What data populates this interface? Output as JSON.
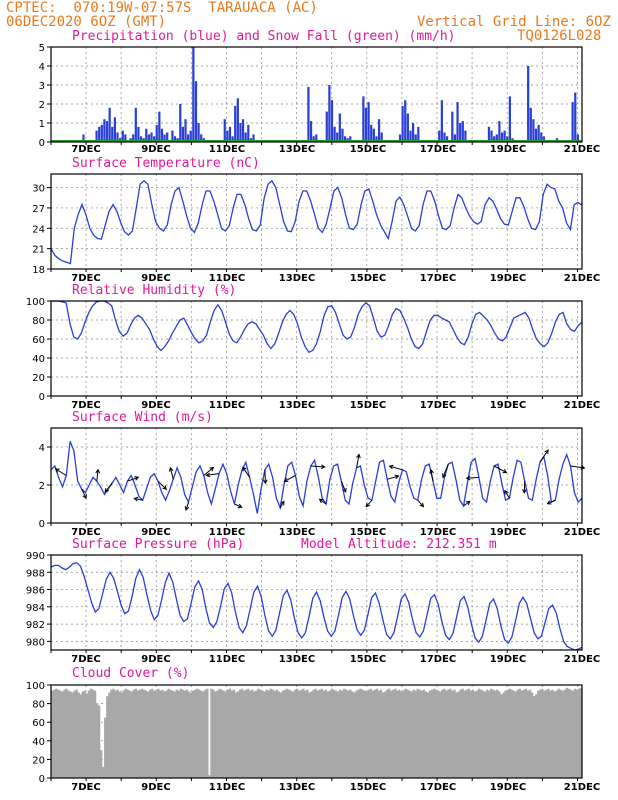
{
  "header": {
    "line1": "CPTEC:  070:19W-07:57S  TARAUACA (AC)",
    "line2": "06DEC2020 6OZ (GMT)",
    "grid_note": "Vertical Grid Line: 6OZ",
    "code": "TQ0126L028"
  },
  "colors": {
    "header": "#e8791e",
    "title": "#e0189a",
    "line": "#2a3fd6",
    "snow": "#1f9a1f",
    "grid": "#888888",
    "cloud": "#a8a8a8"
  },
  "date_labels": [
    "7DEC",
    "9DEC",
    "11DEC",
    "13DEC",
    "15DEC",
    "17DEC",
    "19DEC",
    "21DEC"
  ],
  "chart_data": [
    {
      "type": "bar",
      "title": "Precipitation (blue) and Snow Fall (green) (mm/h)",
      "ylim": [
        0,
        5
      ],
      "yticks": [
        "0",
        "1",
        "2",
        "3",
        "4",
        "5"
      ],
      "series": [
        {
          "name": "Precipitation",
          "values": [
            0,
            0,
            0,
            0,
            0,
            0,
            0,
            0,
            0,
            0,
            0,
            0,
            0.4,
            0,
            0,
            0,
            0,
            0.6,
            0.8,
            0.9,
            1.2,
            1.1,
            1.8,
            0.8,
            1.3,
            0.5,
            0.2,
            0.6,
            0.4,
            0,
            0.2,
            0.4,
            1.8,
            0.8,
            0.3,
            0.2,
            0.7,
            0.4,
            0.5,
            0.3,
            0.9,
            1.6,
            0.7,
            0.4,
            0.5,
            0,
            0.6,
            0.3,
            0.2,
            2.0,
            0.8,
            1.2,
            0.4,
            0.6,
            5.0,
            3.2,
            1.0,
            0.4,
            0.2,
            0,
            0,
            0,
            0,
            0,
            0,
            0,
            1.2,
            0.6,
            0.8,
            0.3,
            1.9,
            2.3,
            1.0,
            1.2,
            0.5,
            0.9,
            0.2,
            0.4,
            0,
            0,
            0,
            0,
            0,
            0,
            0,
            0,
            0,
            0,
            0,
            0,
            0,
            0,
            0,
            0,
            0,
            0,
            0,
            0,
            2.9,
            1.1,
            0.3,
            0.4,
            0,
            0,
            0,
            1.6,
            3.0,
            2.2,
            0.8,
            0.5,
            1.5,
            0.7,
            0.3,
            0.2,
            0.3,
            0,
            0,
            0,
            0,
            2.4,
            1.8,
            2.1,
            0.9,
            0.7,
            0.3,
            1.2,
            0.5,
            0,
            0,
            0,
            0,
            0,
            0,
            0.4,
            1.9,
            2.2,
            1.5,
            0.6,
            1.0,
            0.4,
            0.8,
            0,
            0,
            0,
            0,
            0,
            0,
            0,
            0.6,
            2.2,
            0.5,
            0.3,
            0.1,
            1.6,
            0.4,
            2.1,
            1.0,
            1.1,
            0.6,
            0,
            0,
            0,
            0,
            0,
            0,
            0,
            0,
            0.8,
            0.6,
            0.3,
            0.4,
            1.1,
            0.5,
            0.6,
            0.3,
            2.4,
            0.2,
            0,
            0,
            0,
            0,
            0,
            4.0,
            1.8,
            1.2,
            0.7,
            0.9,
            0.5,
            0.3,
            0,
            0,
            0,
            0,
            0.2,
            0.1,
            0,
            0,
            0,
            0,
            2.1,
            2.6,
            0.4,
            0
          ]
        },
        {
          "name": "Snow Fall",
          "values": [
            0
          ]
        }
      ]
    },
    {
      "type": "line",
      "title": "Surface Temperature (nC)",
      "ylim": [
        18,
        32
      ],
      "yticks": [
        "18",
        "21",
        "24",
        "27",
        "30"
      ],
      "series": [
        {
          "name": "Temperature",
          "values": [
            21,
            20,
            19.5,
            19.2,
            19,
            18.8,
            24,
            26,
            27.5,
            26,
            24,
            23,
            22.5,
            22.4,
            24.5,
            26.5,
            27.5,
            26.5,
            24.8,
            23.5,
            23,
            23.6,
            27,
            30.5,
            31,
            30.5,
            27.5,
            25,
            24,
            23.6,
            24.5,
            27.5,
            29.5,
            30,
            28,
            25.8,
            24,
            23.4,
            24.8,
            27.5,
            29.5,
            29.5,
            28,
            26,
            24,
            23.6,
            24.4,
            27,
            29,
            29,
            27.5,
            25.4,
            23.8,
            23.6,
            24.5,
            28.5,
            30.5,
            31,
            30,
            27.5,
            25,
            23.6,
            23.5,
            25,
            28,
            29.5,
            29.5,
            28,
            26,
            24,
            23.4,
            24.6,
            27,
            29.5,
            30,
            28.5,
            26,
            24,
            23.8,
            24.6,
            27.5,
            29.5,
            29.8,
            28,
            26,
            24.5,
            23.5,
            22.5,
            25,
            28,
            28.6,
            27.5,
            25.8,
            24,
            23.6,
            24.4,
            27.5,
            29.5,
            29.5,
            28,
            25.8,
            24,
            23.8,
            24.4,
            27,
            29,
            28.5,
            27,
            25.8,
            25,
            24.6,
            25,
            27.5,
            28.5,
            28,
            26.8,
            25.4,
            24.6,
            24.5,
            26.5,
            28.5,
            28.5,
            27.2,
            25.4,
            24,
            23.8,
            25,
            29,
            30.5,
            30,
            29.8,
            28,
            27,
            24.8,
            23.8,
            27.5,
            27.8,
            27.4
          ]
        }
      ]
    },
    {
      "type": "line",
      "title": "Relative Humidity (%)",
      "ylim": [
        0,
        100
      ],
      "yticks": [
        "0",
        "20",
        "40",
        "60",
        "80",
        "100"
      ],
      "series": [
        {
          "name": "Relative Humidity",
          "values": [
            100,
            100,
            100,
            99,
            98,
            76,
            62,
            60,
            66,
            78,
            88,
            95,
            99,
            100,
            100,
            98,
            95,
            80,
            68,
            63,
            66,
            75,
            82,
            85,
            82,
            76,
            70,
            60,
            52,
            48,
            52,
            58,
            66,
            73,
            80,
            82,
            75,
            67,
            60,
            56,
            58,
            64,
            78,
            90,
            96,
            90,
            78,
            65,
            58,
            56,
            62,
            70,
            76,
            78,
            76,
            70,
            64,
            55,
            50,
            55,
            66,
            78,
            86,
            90,
            86,
            76,
            62,
            52,
            46,
            48,
            55,
            68,
            85,
            94,
            95,
            88,
            76,
            64,
            60,
            62,
            72,
            86,
            94,
            98,
            95,
            82,
            68,
            62,
            64,
            74,
            86,
            92,
            90,
            82,
            72,
            60,
            52,
            50,
            55,
            68,
            80,
            85,
            85,
            82,
            80,
            78,
            70,
            62,
            56,
            54,
            62,
            76,
            86,
            88,
            84,
            80,
            74,
            66,
            60,
            58,
            62,
            72,
            82,
            84,
            86,
            88,
            82,
            70,
            60,
            55,
            52,
            56,
            66,
            78,
            86,
            88,
            76,
            70,
            68,
            74,
            78
          ]
        }
      ]
    },
    {
      "type": "line",
      "title": "Surface Wind (m/s)",
      "ylim": [
        0,
        5
      ],
      "yticks": [
        "0",
        "2",
        "4"
      ],
      "series": [
        {
          "name": "Wind Speed",
          "values": [
            2.8,
            3.0,
            2.4,
            1.9,
            2.5,
            4.3,
            3.8,
            2.2,
            1.8,
            1.6,
            2.0,
            2.4,
            2.2,
            1.9,
            1.5,
            1.8,
            2.1,
            2.4,
            2.0,
            1.6,
            2.2,
            2.5,
            2.0,
            1.4,
            1.2,
            1.8,
            2.4,
            2.6,
            2.2,
            1.6,
            1.2,
            1.7,
            2.3,
            2.9,
            2.4,
            1.5,
            1.1,
            1.9,
            2.7,
            3.0,
            2.5,
            1.6,
            1.0,
            1.8,
            2.6,
            3.1,
            2.6,
            1.7,
            1.0,
            2.0,
            2.8,
            3.2,
            2.4,
            1.5,
            0.5,
            1.8,
            2.8,
            3.1,
            2.4,
            1.3,
            0.8,
            2.0,
            3.0,
            3.2,
            2.5,
            1.4,
            0.9,
            2.2,
            3.0,
            3.3,
            2.4,
            1.3,
            1.0,
            2.3,
            3.0,
            3.1,
            2.2,
            1.2,
            1.0,
            2.1,
            2.9,
            3.0,
            2.0,
            1.3,
            1.2,
            2.2,
            3.2,
            3.3,
            2.3,
            1.4,
            1.1,
            2.1,
            2.8,
            2.7,
            1.9,
            1.3,
            1.2,
            2.3,
            3.0,
            3.1,
            2.2,
            1.3,
            1.3,
            2.4,
            3.1,
            3.2,
            2.3,
            1.2,
            0.9,
            2.1,
            3.2,
            3.4,
            2.4,
            1.3,
            1.1,
            2.2,
            3.0,
            3.1,
            2.1,
            1.2,
            1.3,
            2.4,
            3.3,
            3.2,
            2.2,
            1.3,
            1.2,
            2.3,
            3.2,
            3.5,
            2.5,
            1.1,
            1.2,
            2.3,
            3.1,
            3.6,
            3.0,
            1.6,
            1.1,
            1.3
          ]
        }
      ]
    },
    {
      "type": "line",
      "title": "Surface Pressure (hPa)",
      "subtitle": "Model Altitude: 212.351 m",
      "ylim": [
        979,
        990
      ],
      "yticks": [
        "980",
        "982",
        "984",
        "986",
        "988",
        "990"
      ],
      "series": [
        {
          "name": "Pressure",
          "values": [
            988.6,
            988.8,
            988.8,
            988.5,
            988.3,
            988.6,
            989.0,
            989.1,
            988.7,
            987.5,
            986.0,
            984.5,
            983.4,
            983.8,
            985.5,
            987.2,
            988.0,
            987.3,
            985.8,
            984.2,
            983.2,
            983.5,
            985.2,
            987.3,
            988.3,
            987.4,
            985.4,
            983.6,
            982.5,
            983.0,
            984.8,
            986.8,
            987.9,
            986.9,
            984.9,
            983.0,
            982.3,
            982.6,
            984.4,
            986.3,
            987.0,
            986.0,
            983.8,
            982.1,
            981.6,
            982.3,
            984.1,
            986.1,
            986.7,
            985.6,
            983.4,
            981.6,
            981.0,
            981.8,
            983.7,
            985.7,
            986.4,
            985.2,
            983.0,
            981.2,
            980.6,
            981.3,
            983.3,
            985.3,
            985.9,
            984.8,
            982.7,
            981.0,
            980.4,
            981.0,
            982.9,
            985.0,
            985.7,
            984.7,
            982.8,
            981.2,
            980.6,
            981.2,
            983.1,
            985.1,
            985.8,
            984.9,
            983.0,
            981.3,
            980.7,
            981.3,
            983.2,
            985.1,
            985.6,
            984.4,
            982.5,
            980.8,
            980.3,
            981.0,
            982.9,
            984.9,
            985.5,
            984.5,
            982.6,
            981.0,
            980.5,
            981.2,
            983.1,
            985.0,
            985.4,
            984.3,
            982.3,
            980.7,
            980.2,
            980.9,
            982.8,
            984.7,
            985.2,
            984.0,
            982.0,
            980.4,
            979.9,
            980.6,
            982.5,
            984.4,
            984.9,
            983.8,
            981.8,
            980.2,
            979.8,
            980.5,
            982.4,
            984.4,
            985.1,
            984.4,
            982.7,
            981.0,
            980.3,
            980.6,
            982.2,
            983.8,
            984.2,
            983.3,
            981.5,
            980.0,
            979.4,
            979.2,
            979.0,
            979.1,
            979.3
          ]
        }
      ]
    },
    {
      "type": "bar",
      "title": "Cloud Cover (%)",
      "ylim": [
        0,
        100
      ],
      "yticks": [
        "0",
        "20",
        "40",
        "60",
        "80",
        "100"
      ],
      "series": [
        {
          "name": "Cloud Cover",
          "values": [
            94,
            95,
            96,
            95,
            94,
            93,
            95,
            96,
            94,
            93,
            92,
            94,
            95,
            92,
            90,
            93,
            94,
            91,
            94,
            96,
            95,
            94,
            80,
            78,
            30,
            12,
            65,
            88,
            92,
            95,
            96,
            94,
            95,
            93,
            92,
            94,
            96,
            95,
            94,
            93,
            95,
            96,
            94,
            95,
            96,
            95,
            94,
            93,
            95,
            96,
            94,
            95,
            96,
            94,
            95,
            93,
            94,
            96,
            95,
            94,
            93,
            95,
            94,
            96,
            95,
            94,
            95,
            93,
            92,
            94,
            95,
            96,
            95,
            94,
            93,
            95,
            96,
            3,
            96,
            95,
            93,
            94,
            96,
            95,
            94,
            93,
            95,
            96,
            94,
            95,
            92,
            93,
            95,
            96,
            94,
            95,
            96,
            94,
            95,
            93,
            94,
            96,
            95,
            94,
            93,
            95,
            94,
            96,
            95,
            94,
            95,
            93,
            92,
            94,
            95,
            96,
            95,
            94,
            93,
            95,
            96,
            94,
            95,
            96,
            94,
            95,
            92,
            93,
            95,
            96,
            94,
            95,
            96,
            94,
            95,
            93,
            94,
            96,
            95,
            94,
            93,
            95,
            94,
            96,
            95,
            94,
            95,
            93,
            92,
            94,
            95,
            96,
            95,
            94,
            93,
            95,
            96,
            94,
            95,
            96,
            94,
            95,
            92,
            93,
            95,
            96,
            94,
            95,
            96,
            94,
            95,
            93,
            94,
            96,
            95,
            94,
            93,
            95,
            94,
            96,
            95,
            94,
            95,
            93,
            92,
            94,
            95,
            96,
            95,
            94,
            93,
            95,
            96,
            94,
            95,
            96,
            94,
            95,
            92,
            93,
            95,
            96,
            94,
            95,
            96,
            94,
            95,
            93,
            94,
            96,
            95,
            94,
            93,
            95,
            94,
            96,
            95,
            94,
            95,
            93,
            90,
            92,
            94,
            95,
            96,
            95,
            94,
            93,
            95,
            96,
            94,
            95,
            96,
            94,
            95,
            92,
            88,
            90,
            94,
            95,
            96,
            94,
            95,
            96,
            94,
            95,
            93,
            94,
            96,
            95,
            94,
            95,
            97,
            96,
            95,
            94,
            96,
            95,
            96,
            97
          ]
        }
      ]
    }
  ]
}
